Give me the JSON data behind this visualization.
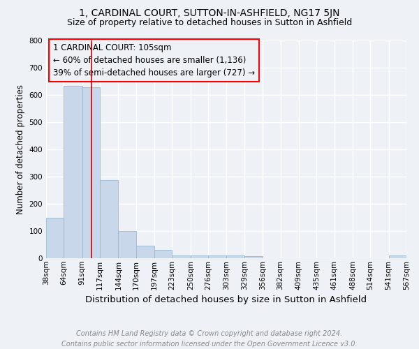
{
  "title": "1, CARDINAL COURT, SUTTON-IN-ASHFIELD, NG17 5JN",
  "subtitle": "Size of property relative to detached houses in Sutton in Ashfield",
  "xlabel": "Distribution of detached houses by size in Sutton in Ashfield",
  "ylabel": "Number of detached properties",
  "footer_line1": "Contains HM Land Registry data © Crown copyright and database right 2024.",
  "footer_line2": "Contains public sector information licensed under the Open Government Licence v3.0.",
  "annotation_line1": "1 CARDINAL COURT: 105sqm",
  "annotation_line2": "← 60% of detached houses are smaller (1,136)",
  "annotation_line3": "39% of semi-detached houses are larger (727) →",
  "bar_color": "#c8d8ea",
  "bar_edgecolor": "#9ab8d0",
  "redline_color": "#cc0000",
  "redline_x": 105,
  "bins": [
    38,
    64,
    91,
    117,
    144,
    170,
    197,
    223,
    250,
    276,
    303,
    329,
    356,
    382,
    409,
    435,
    461,
    488,
    514,
    541,
    567
  ],
  "bin_labels": [
    "38sqm",
    "64sqm",
    "91sqm",
    "117sqm",
    "144sqm",
    "170sqm",
    "197sqm",
    "223sqm",
    "250sqm",
    "276sqm",
    "303sqm",
    "329sqm",
    "356sqm",
    "382sqm",
    "409sqm",
    "435sqm",
    "461sqm",
    "488sqm",
    "514sqm",
    "541sqm",
    "567sqm"
  ],
  "bar_heights": [
    148,
    632,
    627,
    288,
    101,
    45,
    31,
    11,
    10,
    9,
    9,
    7,
    0,
    0,
    0,
    0,
    0,
    0,
    0,
    10,
    0
  ],
  "ylim": [
    0,
    800
  ],
  "yticks": [
    0,
    100,
    200,
    300,
    400,
    500,
    600,
    700,
    800
  ],
  "background_color": "#eef2f7",
  "grid_color": "#ffffff",
  "title_fontsize": 10,
  "subtitle_fontsize": 9,
  "xlabel_fontsize": 9.5,
  "ylabel_fontsize": 8.5,
  "tick_fontsize": 7.5,
  "annotation_fontsize": 8.5,
  "footer_fontsize": 7
}
